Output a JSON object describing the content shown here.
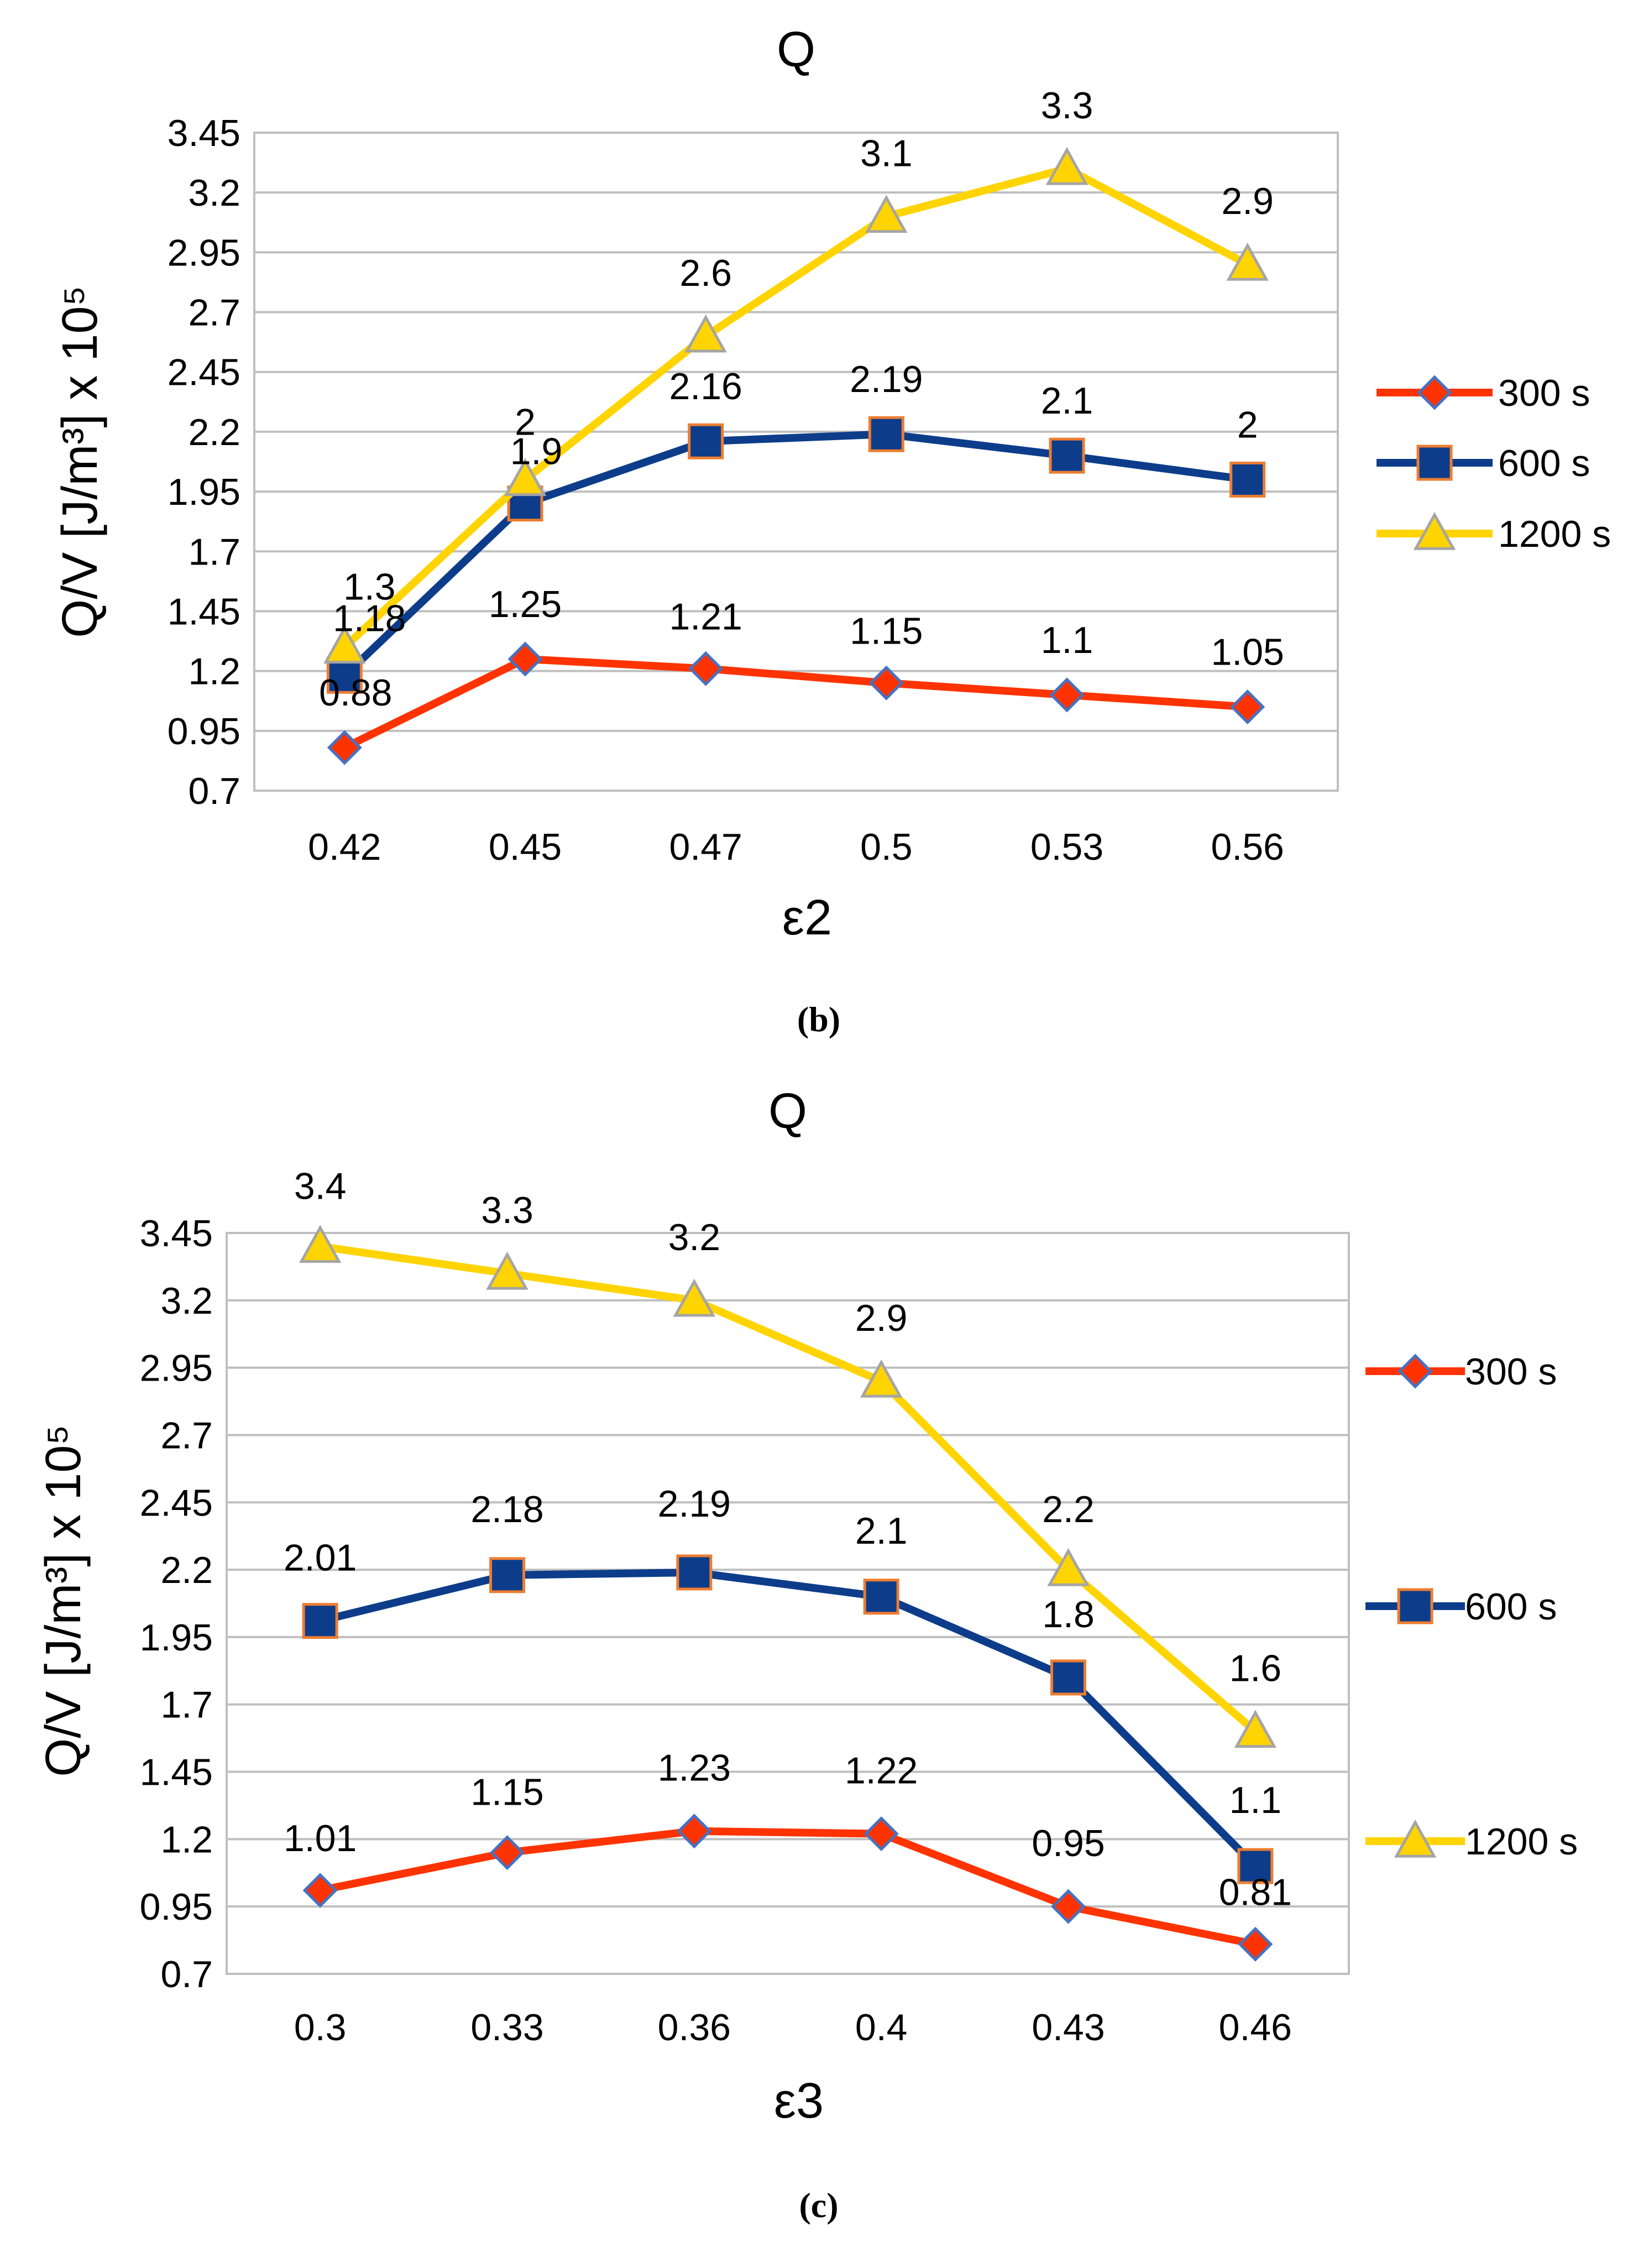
{
  "chart_data": [
    {
      "type": "line",
      "panel": "b",
      "title": "Q",
      "caption": "(b)",
      "xlabel": "ε2",
      "ylabel": "Q/V [J/m³] x 10⁵",
      "categories": [
        "0.42",
        "0.45",
        "0.47",
        "0.5",
        "0.53",
        "0.56"
      ],
      "yticks": [
        "0.7",
        "0.95",
        "1.2",
        "1.45",
        "1.7",
        "1.95",
        "2.2",
        "2.45",
        "2.7",
        "2.95",
        "3.2",
        "3.45"
      ],
      "ylim": [
        0.7,
        3.45
      ],
      "grid": true,
      "legend_position": "right",
      "series": [
        {
          "name": "300 s",
          "color": "#ff3300",
          "marker": "diamond",
          "values": [
            0.88,
            1.25,
            1.21,
            1.15,
            1.1,
            1.05
          ],
          "labels": [
            "0.88",
            "1.25",
            "1.21",
            "1.15",
            "1.1",
            "1.05"
          ]
        },
        {
          "name": "600 s",
          "color": "#0d3d8a",
          "marker": "square",
          "values": [
            1.18,
            1.9,
            2.16,
            2.19,
            2.1,
            2.0
          ],
          "labels": [
            "1.18",
            "1.9",
            "2.16",
            "2.19",
            "2.1",
            "2"
          ]
        },
        {
          "name": "1200 s",
          "color": "#ffd400",
          "marker": "triangle",
          "values": [
            1.3,
            2.0,
            2.6,
            3.1,
            3.3,
            2.9
          ],
          "labels": [
            "1.3",
            "2",
            "2.6",
            "3.1",
            "3.3",
            "2.9"
          ]
        }
      ]
    },
    {
      "type": "line",
      "panel": "c",
      "title": "Q",
      "caption": "(c)",
      "xlabel": "ε3",
      "ylabel": "Q/V [J/m³] x 10⁵",
      "categories": [
        "0.3",
        "0.33",
        "0.36",
        "0.4",
        "0.43",
        "0.46"
      ],
      "yticks": [
        "0.7",
        "0.95",
        "1.2",
        "1.45",
        "1.7",
        "1.95",
        "2.2",
        "2.45",
        "2.7",
        "2.95",
        "3.2",
        "3.45"
      ],
      "ylim": [
        0.7,
        3.45
      ],
      "grid": true,
      "legend_position": "right",
      "series": [
        {
          "name": "300 s",
          "color": "#ff3300",
          "marker": "diamond",
          "values": [
            1.01,
            1.15,
            1.23,
            1.22,
            0.95,
            0.81
          ],
          "labels": [
            "1.01",
            "1.15",
            "1.23",
            "1.22",
            "0.95",
            "0.81"
          ]
        },
        {
          "name": "600 s",
          "color": "#0d3d8a",
          "marker": "square",
          "values": [
            2.01,
            2.18,
            2.19,
            2.1,
            1.8,
            1.1
          ],
          "labels": [
            "2.01",
            "2.18",
            "2.19",
            "2.1",
            "1.8",
            "1.1"
          ]
        },
        {
          "name": "1200 s",
          "color": "#ffd400",
          "marker": "triangle",
          "values": [
            3.4,
            3.3,
            3.2,
            2.9,
            2.2,
            1.6
          ],
          "labels": [
            "3.4",
            "3.3",
            "3.2",
            "2.9",
            "2.2",
            "1.6"
          ]
        }
      ]
    }
  ]
}
